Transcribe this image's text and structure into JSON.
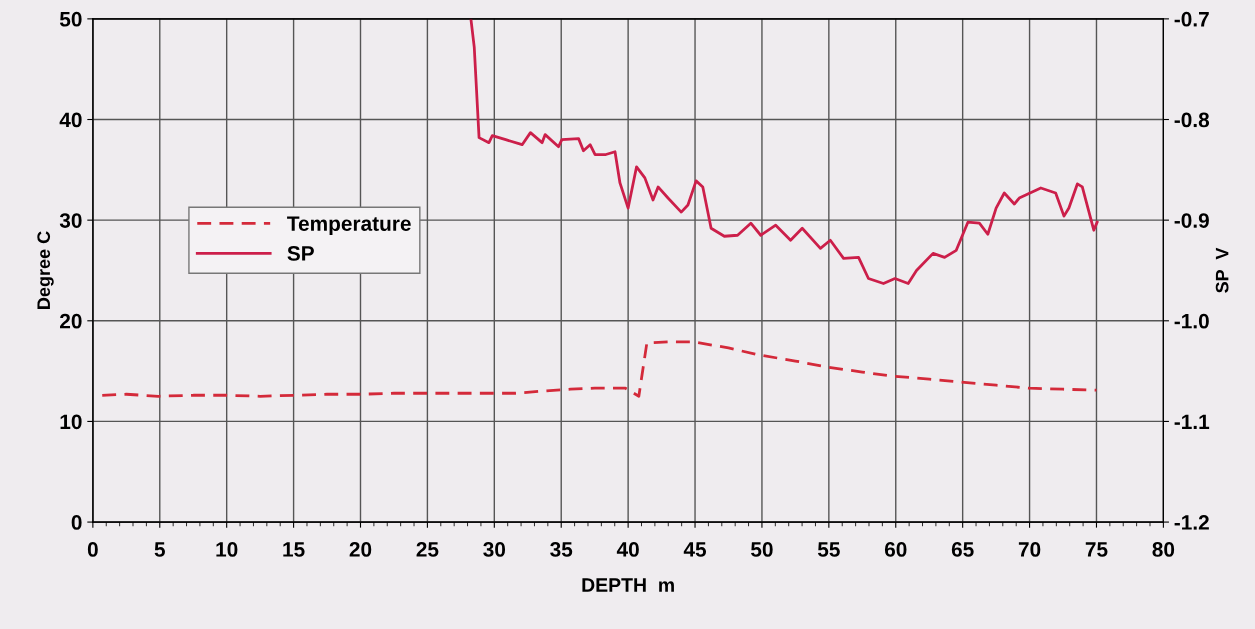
{
  "chart_data": {
    "type": "line",
    "xlabel": "DEPTH  m",
    "ylabel": "Degree C",
    "y2label": "SP  V",
    "xlim": [
      0,
      80
    ],
    "xticks": [
      0,
      5,
      10,
      15,
      20,
      25,
      30,
      35,
      40,
      45,
      50,
      55,
      60,
      65,
      70,
      75,
      80
    ],
    "ylim": [
      0,
      50
    ],
    "yticks": [
      0,
      10,
      20,
      30,
      40,
      50
    ],
    "y2lim": [
      -1.2,
      -0.7
    ],
    "y2ticks": [
      -1.2,
      -1.1,
      {
        "value": -1.0,
        "label": "-1.0"
      },
      -0.9,
      -0.8,
      -0.7
    ],
    "grid": true,
    "legend": "left",
    "series": [
      {
        "name": "Temperature",
        "color": "#d42a3a",
        "line_style": "dashed",
        "x": [
          0.7,
          2.5,
          4.9,
          7.5,
          10,
          12.5,
          15.1,
          17.5,
          20,
          22.5,
          25.4,
          28,
          31.6,
          33.5,
          35.7,
          37.5,
          39.8,
          40.8,
          41.4,
          43,
          44.9,
          47.5,
          49.8,
          52.5,
          54.9,
          57.5,
          59.8,
          62.5,
          64.9,
          67.5,
          70.0,
          72.5,
          75.0
        ],
        "values": [
          12.6,
          12.7,
          12.5,
          12.6,
          12.6,
          12.5,
          12.6,
          12.7,
          12.7,
          12.8,
          12.8,
          12.8,
          12.8,
          13.0,
          13.2,
          13.3,
          13.3,
          12.5,
          17.8,
          17.9,
          17.9,
          17.3,
          16.6,
          16.0,
          15.4,
          14.9,
          14.5,
          14.2,
          13.9,
          13.6,
          13.3,
          13.2,
          13.1
        ]
      },
      {
        "name": "SP",
        "color": "#cc1f4a",
        "axis": "y2",
        "line_style": "solid",
        "x": [
          28.25,
          28.5,
          28.86,
          29.6,
          29.85,
          30.85,
          32.08,
          32.7,
          33.57,
          33.8,
          34.8,
          35.05,
          36.3,
          36.66,
          37.16,
          37.53,
          38.28,
          39.02,
          39.39,
          40.0,
          40.63,
          41.25,
          41.86,
          42.24,
          42.98,
          43.97,
          44.47,
          45.08,
          45.58,
          46.2,
          47.19,
          48.18,
          49.17,
          49.91,
          51.03,
          52.14,
          53.01,
          54.37,
          55.11,
          56.1,
          57.22,
          57.96,
          59.08,
          59.94,
          60.93,
          61.55,
          62.79,
          63.65,
          64.52,
          65.39,
          66.25,
          66.88,
          67.5,
          68.11,
          68.86,
          69.23,
          70.84,
          71.95,
          72.57,
          72.94,
          73.57,
          73.94,
          74.8,
          75.05
        ],
        "values": [
          -0.7,
          -0.728,
          -0.818,
          -0.823,
          -0.816,
          -0.82,
          -0.825,
          -0.813,
          -0.823,
          -0.815,
          -0.827,
          -0.82,
          -0.819,
          -0.831,
          -0.825,
          -0.835,
          -0.835,
          -0.832,
          -0.863,
          -0.888,
          -0.847,
          -0.858,
          -0.88,
          -0.867,
          -0.878,
          -0.892,
          -0.885,
          -0.861,
          -0.867,
          -0.908,
          -0.916,
          -0.915,
          -0.903,
          -0.915,
          -0.905,
          -0.92,
          -0.908,
          -0.928,
          -0.92,
          -0.938,
          -0.937,
          -0.958,
          -0.963,
          -0.958,
          -0.963,
          -0.95,
          -0.933,
          -0.937,
          -0.93,
          -0.902,
          -0.903,
          -0.914,
          -0.888,
          -0.873,
          -0.884,
          -0.878,
          -0.868,
          -0.873,
          -0.896,
          -0.888,
          -0.864,
          -0.867,
          -0.91,
          -0.902
        ]
      }
    ]
  }
}
